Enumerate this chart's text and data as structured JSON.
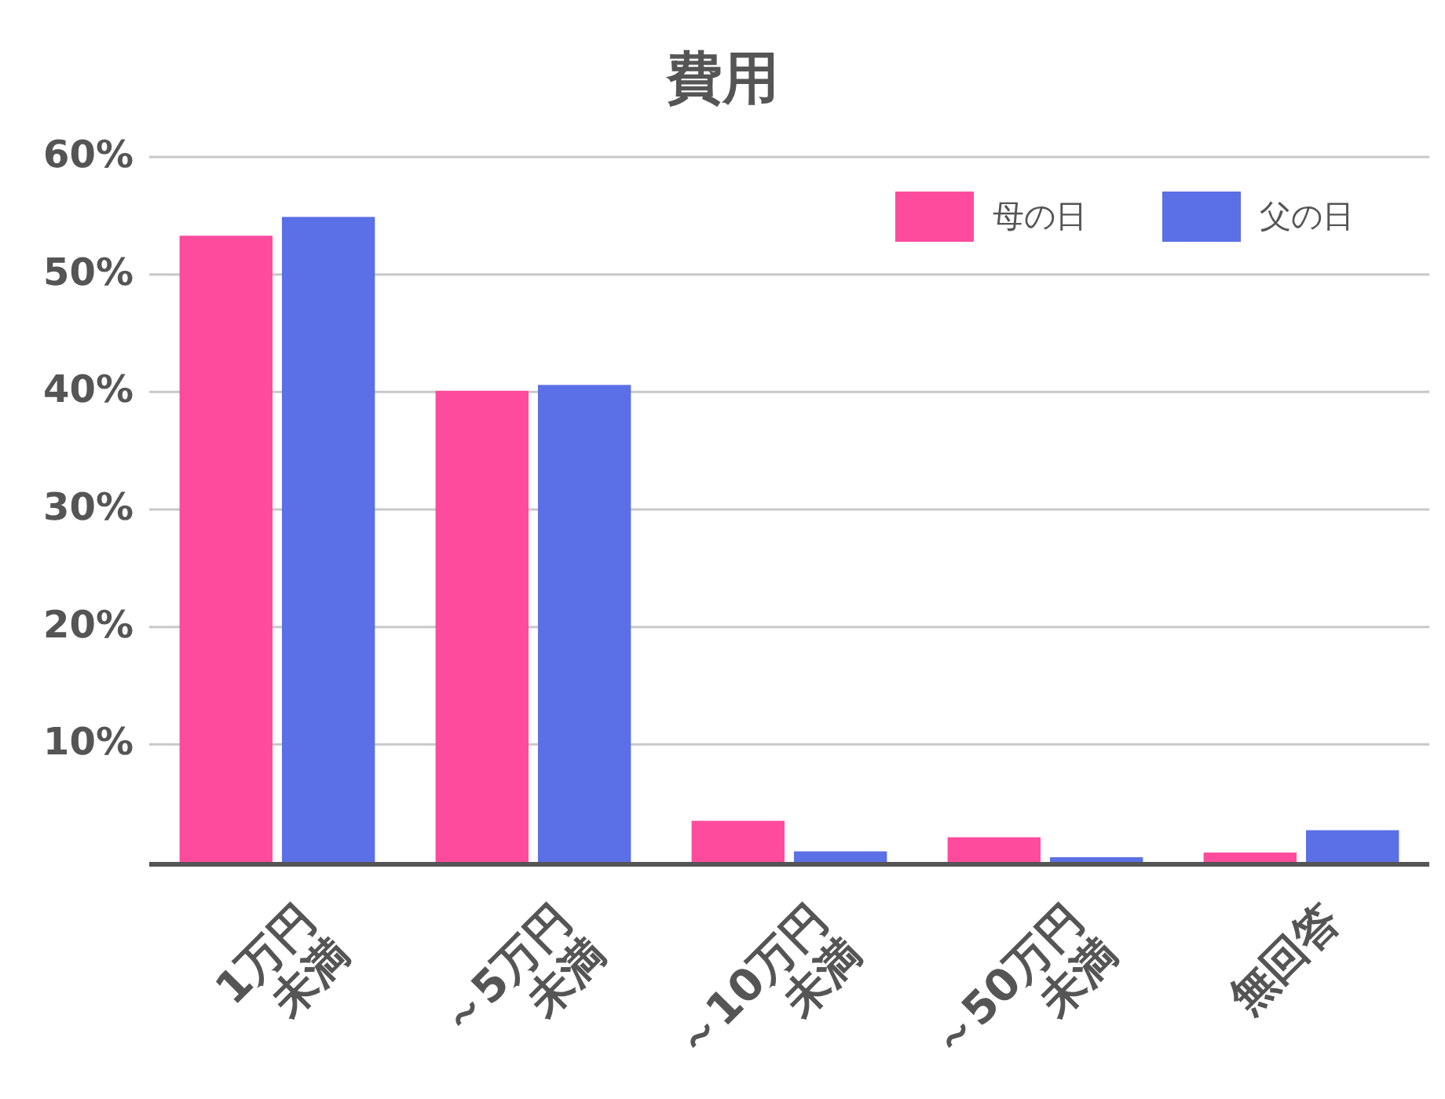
{
  "chart_data": {
    "type": "bar",
    "title": "費用",
    "categories": [
      "1万円\n未満",
      "～5万円\n未満",
      "～10万円\n未満",
      "～50万円\n未満",
      "無回答"
    ],
    "series": [
      {
        "name": "母の日",
        "color": "#ff4b9d",
        "values": [
          53.3,
          40.1,
          3.5,
          2.1,
          0.8
        ]
      },
      {
        "name": "父の日",
        "color": "#5b70e6",
        "values": [
          54.9,
          40.6,
          0.9,
          0.4,
          2.7
        ]
      }
    ],
    "ylim": [
      0,
      60
    ],
    "yticks": [
      {
        "value": 10,
        "label": "10%"
      },
      {
        "value": 20,
        "label": "20%"
      },
      {
        "value": 30,
        "label": "30%"
      },
      {
        "value": 40,
        "label": "40%"
      },
      {
        "value": 50,
        "label": "50%"
      },
      {
        "value": 60,
        "label": "60%"
      }
    ],
    "grid": "y",
    "legend": "top right"
  }
}
